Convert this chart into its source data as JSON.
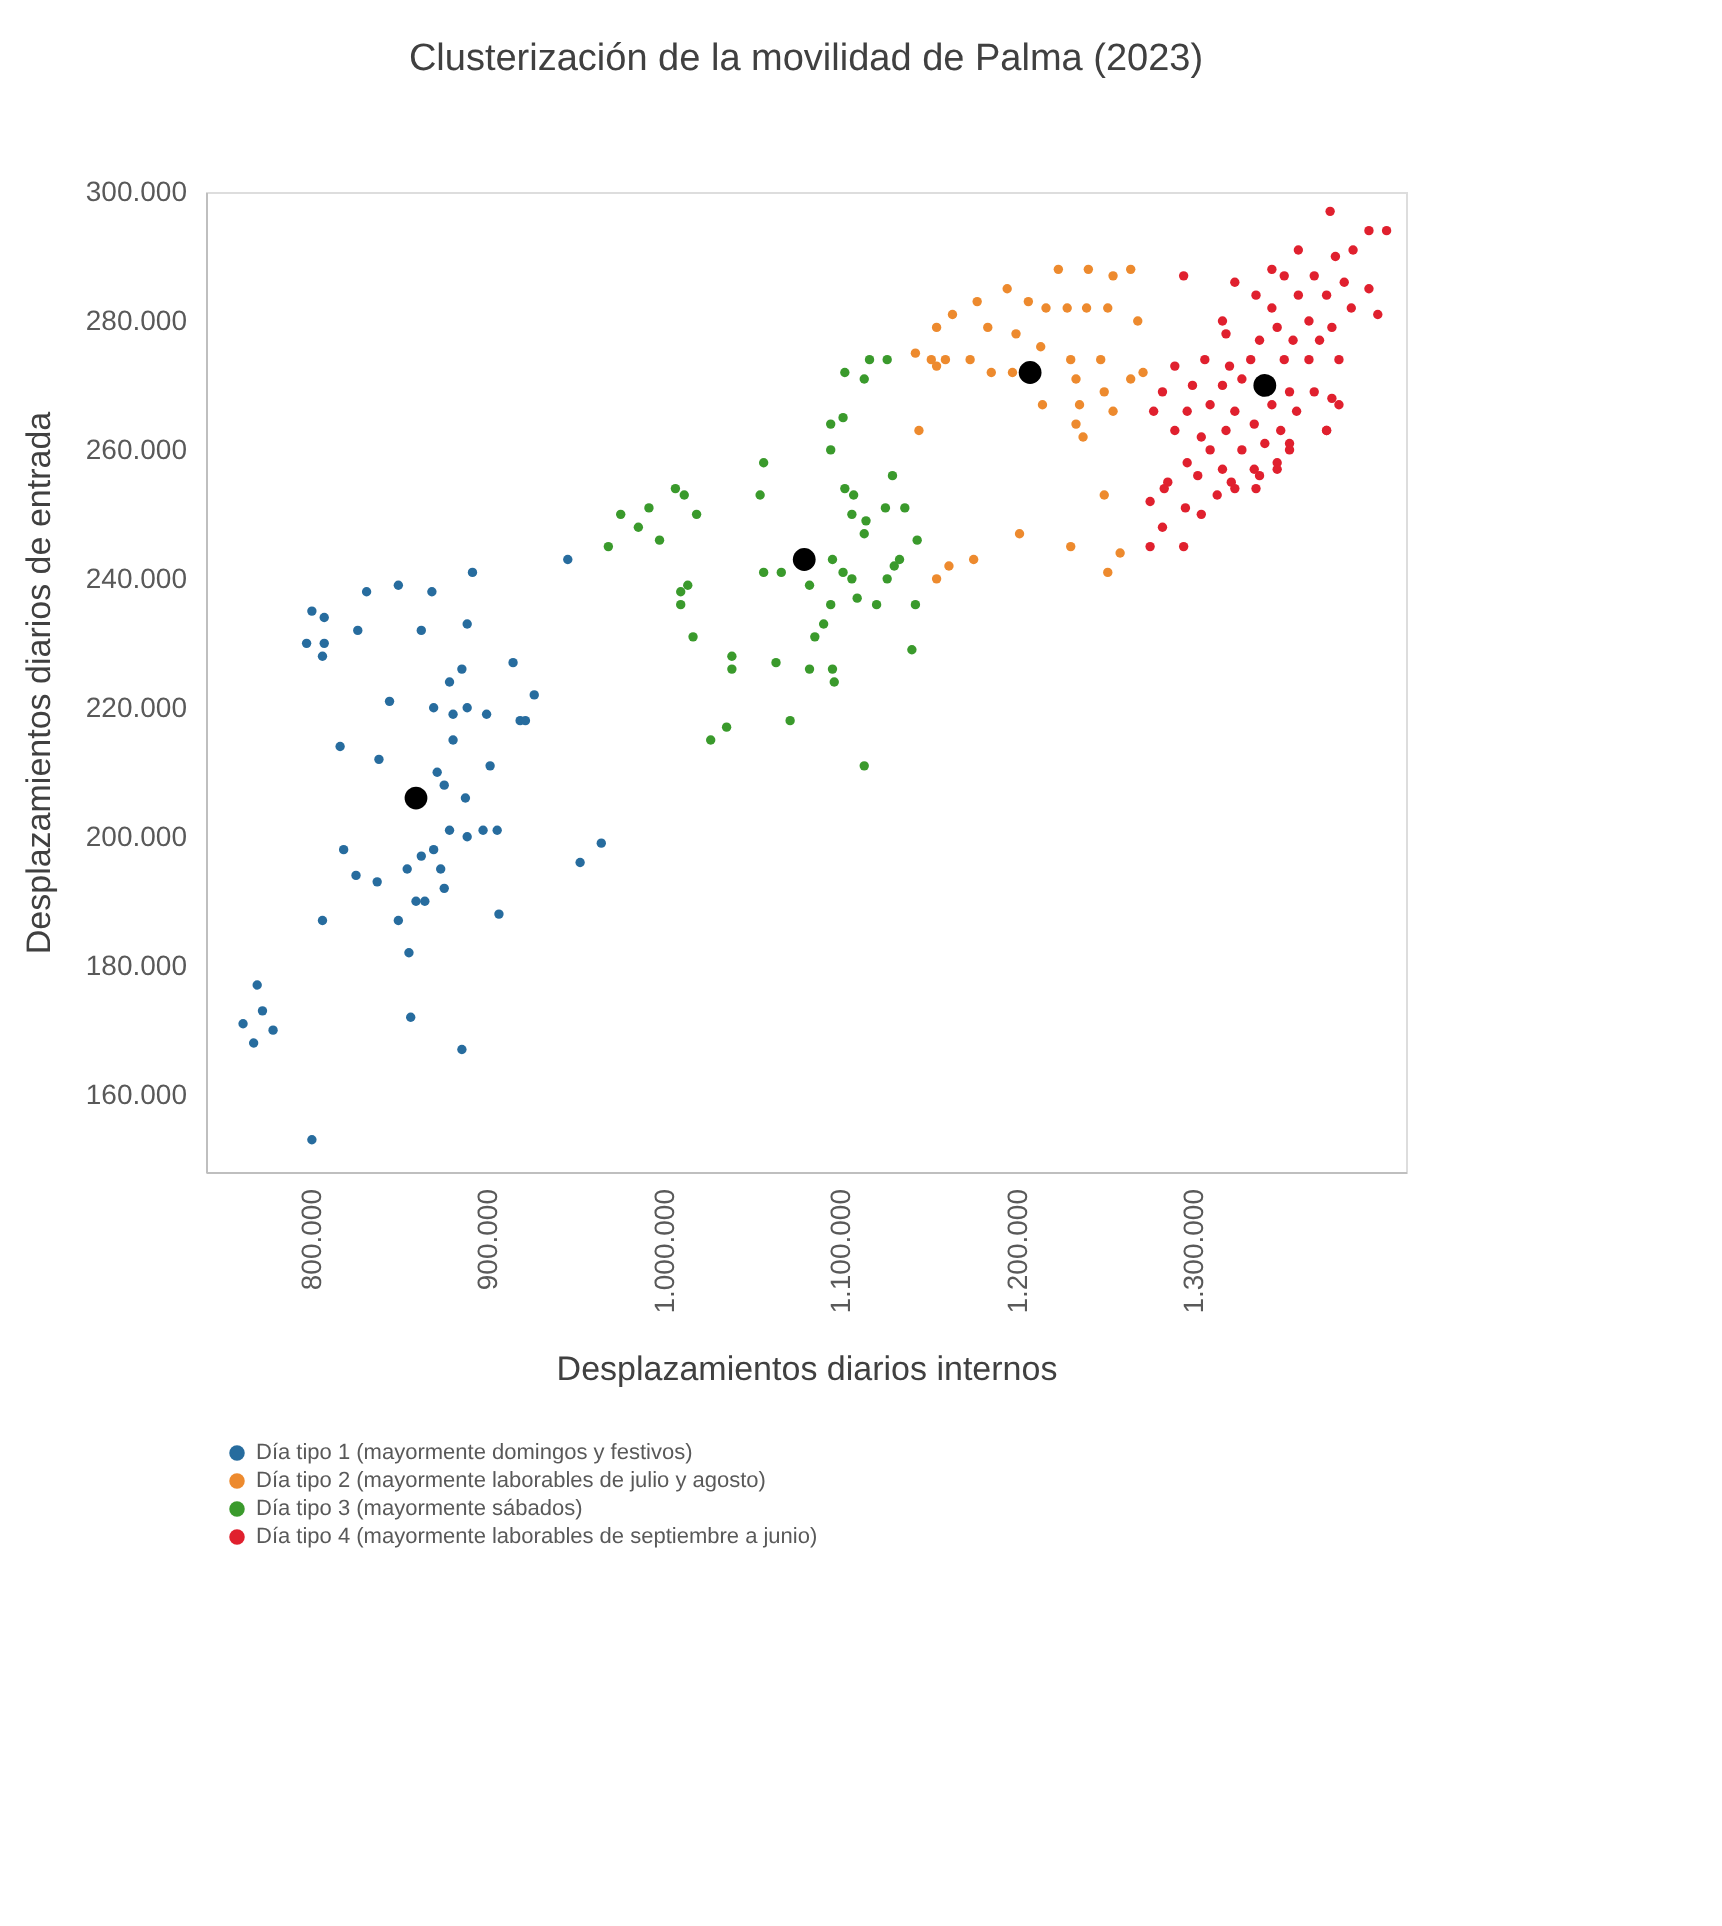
{
  "chart_data": {
    "type": "scatter",
    "title": "Clusterización de la movilidad de Palma (2023)",
    "xlabel": "Desplazamientos diarios internos",
    "ylabel": "Desplazamientos diarios de entrada",
    "xlim": [
      740000,
      1420000
    ],
    "ylim": [
      148000,
      300000
    ],
    "xticks": [
      {
        "value": 800000,
        "label": "800.000"
      },
      {
        "value": 900000,
        "label": "900.000"
      },
      {
        "value": 1000000,
        "label": "1.000.000"
      },
      {
        "value": 1100000,
        "label": "1.100.000"
      },
      {
        "value": 1200000,
        "label": "1.200.000"
      },
      {
        "value": 1300000,
        "label": "1.300.000"
      }
    ],
    "yticks": [
      {
        "value": 160000,
        "label": "160.000"
      },
      {
        "value": 180000,
        "label": "180.000"
      },
      {
        "value": 200000,
        "label": "200.000"
      },
      {
        "value": 220000,
        "label": "220.000"
      },
      {
        "value": 240000,
        "label": "240.000"
      },
      {
        "value": 260000,
        "label": "260.000"
      },
      {
        "value": 280000,
        "label": "280.000"
      },
      {
        "value": 300000,
        "label": "300.000"
      }
    ],
    "grid": false,
    "legend": "bottom",
    "marker": "circle",
    "series": [
      {
        "name": "Día tipo 1 (mayormente domingos y festivos)",
        "color": "#276c9e",
        "x": [
          800000,
          807000,
          797000,
          807000,
          806000,
          831000,
          849000,
          868000,
          891000,
          826000,
          862000,
          888000,
          878000,
          885000,
          914000,
          926000,
          844000,
          869000,
          880000,
          888000,
          899000,
          918000,
          921000,
          880000,
          816000,
          838000,
          901000,
          871000,
          875000,
          887000,
          878000,
          888000,
          897000,
          905000,
          818000,
          825000,
          837000,
          854000,
          862000,
          869000,
          873000,
          875000,
          859000,
          864000,
          806000,
          849000,
          906000,
          855000,
          856000,
          885000,
          769000,
          772000,
          761000,
          778000,
          767000,
          800000,
          952000,
          964000,
          945000
        ],
        "values": [
          235000,
          234000,
          230000,
          230000,
          228000,
          238000,
          239000,
          238000,
          241000,
          232000,
          232000,
          233000,
          224000,
          226000,
          227000,
          222000,
          221000,
          220000,
          219000,
          220000,
          219000,
          218000,
          218000,
          215000,
          214000,
          212000,
          211000,
          210000,
          208000,
          206000,
          201000,
          200000,
          201000,
          201000,
          198000,
          194000,
          193000,
          195000,
          197000,
          198000,
          195000,
          192000,
          190000,
          190000,
          187000,
          187000,
          188000,
          182000,
          172000,
          167000,
          177000,
          173000,
          171000,
          170000,
          168000,
          153000,
          196000,
          199000,
          243000
        ]
      },
      {
        "name": "Día tipo 2 (mayormente laborables de julio y agosto)",
        "color": "#ed8a2e",
        "x": [
          1223000,
          1240000,
          1254000,
          1264000,
          1194000,
          1177000,
          1206000,
          1216000,
          1228000,
          1239000,
          1251000,
          1268000,
          1163000,
          1154000,
          1183000,
          1199000,
          1213000,
          1142000,
          1151000,
          1159000,
          1173000,
          1185000,
          1197000,
          1154000,
          1230000,
          1247000,
          1233000,
          1249000,
          1264000,
          1271000,
          1214000,
          1235000,
          1254000,
          1233000,
          1237000,
          1144000,
          1249000,
          1201000,
          1230000,
          1258000,
          1251000,
          1175000,
          1161000,
          1154000
        ],
        "values": [
          288000,
          288000,
          287000,
          288000,
          285000,
          283000,
          283000,
          282000,
          282000,
          282000,
          282000,
          280000,
          281000,
          279000,
          279000,
          278000,
          276000,
          275000,
          274000,
          274000,
          274000,
          272000,
          272000,
          273000,
          274000,
          274000,
          271000,
          269000,
          271000,
          272000,
          267000,
          267000,
          266000,
          264000,
          262000,
          263000,
          253000,
          247000,
          245000,
          244000,
          241000,
          243000,
          242000,
          240000
        ]
      },
      {
        "name": "Día tipo 3 (mayormente sábados)",
        "color": "#3a9a2c",
        "x": [
          1102000,
          1113000,
          1116000,
          1126000,
          1094000,
          1101000,
          1094000,
          1056000,
          1054000,
          1129000,
          1102000,
          1107000,
          1106000,
          1114000,
          1125000,
          1136000,
          1113000,
          1143000,
          1133000,
          1130000,
          1006000,
          1011000,
          975000,
          991000,
          1018000,
          985000,
          968000,
          997000,
          1095000,
          1101000,
          1106000,
          1056000,
          1066000,
          1082000,
          1126000,
          1109000,
          1120000,
          1142000,
          1013000,
          1009000,
          1009000,
          1094000,
          1090000,
          1085000,
          1016000,
          1038000,
          1038000,
          1063000,
          1082000,
          1095000,
          1096000,
          1140000,
          1035000,
          1026000,
          1071000,
          1113000
        ],
        "values": [
          272000,
          271000,
          274000,
          274000,
          264000,
          265000,
          260000,
          258000,
          253000,
          256000,
          254000,
          253000,
          250000,
          249000,
          251000,
          251000,
          247000,
          246000,
          243000,
          242000,
          254000,
          253000,
          250000,
          251000,
          250000,
          248000,
          245000,
          246000,
          243000,
          241000,
          240000,
          241000,
          241000,
          239000,
          240000,
          237000,
          236000,
          236000,
          239000,
          238000,
          236000,
          236000,
          233000,
          231000,
          231000,
          228000,
          226000,
          227000,
          226000,
          226000,
          224000,
          229000,
          217000,
          215000,
          218000,
          211000
        ]
      },
      {
        "name": "Día tipo 4 (mayormente laborables de septiembre a junio)",
        "color": "#e0202e",
        "x": [
          1377000,
          1399000,
          1409000,
          1359000,
          1294000,
          1380000,
          1390000,
          1344000,
          1323000,
          1351000,
          1368000,
          1385000,
          1399000,
          1335000,
          1316000,
          1344000,
          1359000,
          1375000,
          1389000,
          1404000,
          1318000,
          1347000,
          1365000,
          1378000,
          1337000,
          1356000,
          1371000,
          1289000,
          1306000,
          1320000,
          1332000,
          1351000,
          1365000,
          1382000,
          1282000,
          1299000,
          1316000,
          1327000,
          1354000,
          1368000,
          1378000,
          1277000,
          1296000,
          1309000,
          1323000,
          1344000,
          1358000,
          1375000,
          1289000,
          1304000,
          1318000,
          1334000,
          1349000,
          1309000,
          1327000,
          1340000,
          1354000,
          1296000,
          1316000,
          1334000,
          1347000,
          1285000,
          1302000,
          1321000,
          1335000,
          1275000,
          1283000,
          1295000,
          1282000,
          1275000,
          1294000,
          1304000,
          1313000,
          1323000,
          1337000,
          1347000,
          1354000,
          1375000,
          1382000
        ],
        "values": [
          297000,
          294000,
          294000,
          291000,
          287000,
          290000,
          291000,
          288000,
          286000,
          287000,
          287000,
          286000,
          285000,
          284000,
          280000,
          282000,
          284000,
          284000,
          282000,
          281000,
          278000,
          279000,
          280000,
          279000,
          277000,
          277000,
          277000,
          273000,
          274000,
          273000,
          274000,
          274000,
          274000,
          274000,
          269000,
          270000,
          270000,
          271000,
          269000,
          269000,
          268000,
          266000,
          266000,
          267000,
          266000,
          267000,
          266000,
          263000,
          263000,
          262000,
          263000,
          264000,
          263000,
          260000,
          260000,
          261000,
          260000,
          258000,
          257000,
          257000,
          258000,
          255000,
          256000,
          255000,
          254000,
          252000,
          254000,
          251000,
          248000,
          245000,
          245000,
          250000,
          253000,
          254000,
          256000,
          257000,
          261000,
          263000,
          267000
        ]
      },
      {
        "type": "bubble",
        "color": "#000000",
        "x": [
          859000,
          1207000,
          1079000,
          1340000
        ],
        "values": [
          206000,
          272000,
          243000,
          270000
        ],
        "sizes": [
          1,
          1,
          1,
          1
        ]
      }
    ]
  }
}
